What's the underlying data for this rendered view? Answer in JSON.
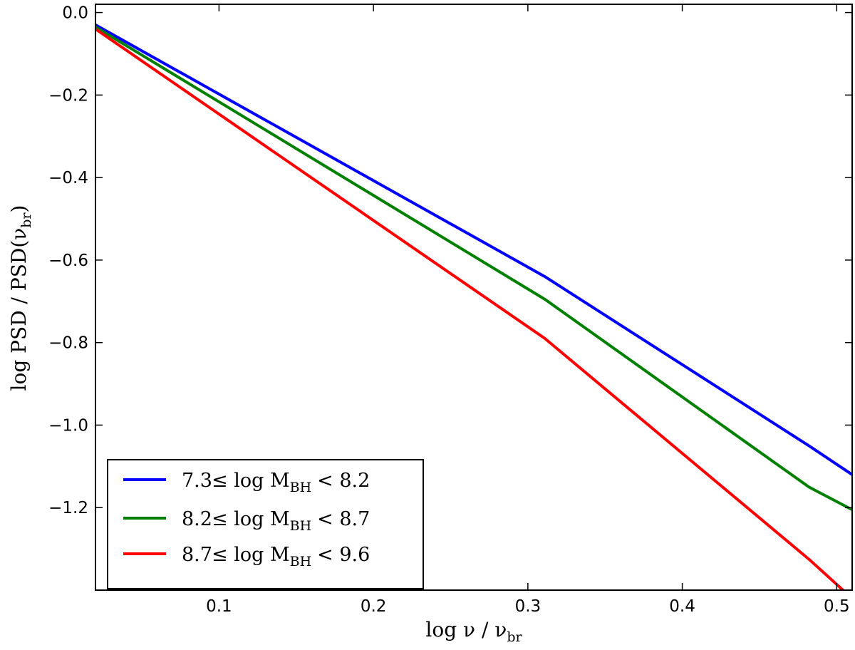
{
  "chart_data": {
    "type": "line",
    "title": "",
    "xlabel": {
      "main": "log ν / ν",
      "sub": "br"
    },
    "ylabel": {
      "main": "log PSD / PSD(ν",
      "sub": "br",
      "close": ")"
    },
    "xlim": [
      0.02,
      0.51
    ],
    "ylim": [
      -1.4,
      0.02
    ],
    "xticks": [
      0.1,
      0.2,
      0.3,
      0.4,
      0.5
    ],
    "xtick_labels": [
      "0.1",
      "0.2",
      "0.3",
      "0.4",
      "0.5"
    ],
    "yticks": [
      0.0,
      -0.2,
      -0.4,
      -0.6,
      -0.8,
      -1.0,
      -1.2
    ],
    "ytick_labels": [
      "0.0",
      "−0.2",
      "−0.4",
      "−0.6",
      "−0.8",
      "−1.0",
      "−1.2"
    ],
    "legend_position": "bottom-left",
    "series": [
      {
        "name": "7.3 ≤ log M_BH < 8.2",
        "label": {
          "low": "7.3",
          "op1": "≤ log M",
          "sub": "BH",
          "op2": "< 8.2"
        },
        "color": "#0000ff",
        "x": [
          0.02,
          0.311,
          0.482,
          0.51
        ],
        "y": [
          -0.03,
          -0.64,
          -1.05,
          -1.12
        ]
      },
      {
        "name": "8.2 ≤ log M_BH < 8.7",
        "label": {
          "low": "8.2",
          "op1": "≤ log M",
          "sub": "BH",
          "op2": "< 8.7"
        },
        "color": "#008000",
        "x": [
          0.02,
          0.311,
          0.482,
          0.51
        ],
        "y": [
          -0.035,
          -0.695,
          -1.15,
          -1.205
        ]
      },
      {
        "name": "8.7 ≤ log M_BH < 9.6",
        "label": {
          "low": "8.7",
          "op1": "≤ log M",
          "sub": "BH",
          "op2": "< 9.6"
        },
        "color": "#ff0000",
        "x": [
          0.02,
          0.311,
          0.482,
          0.51
        ],
        "y": [
          -0.04,
          -0.79,
          -1.325,
          -1.42
        ]
      }
    ]
  }
}
